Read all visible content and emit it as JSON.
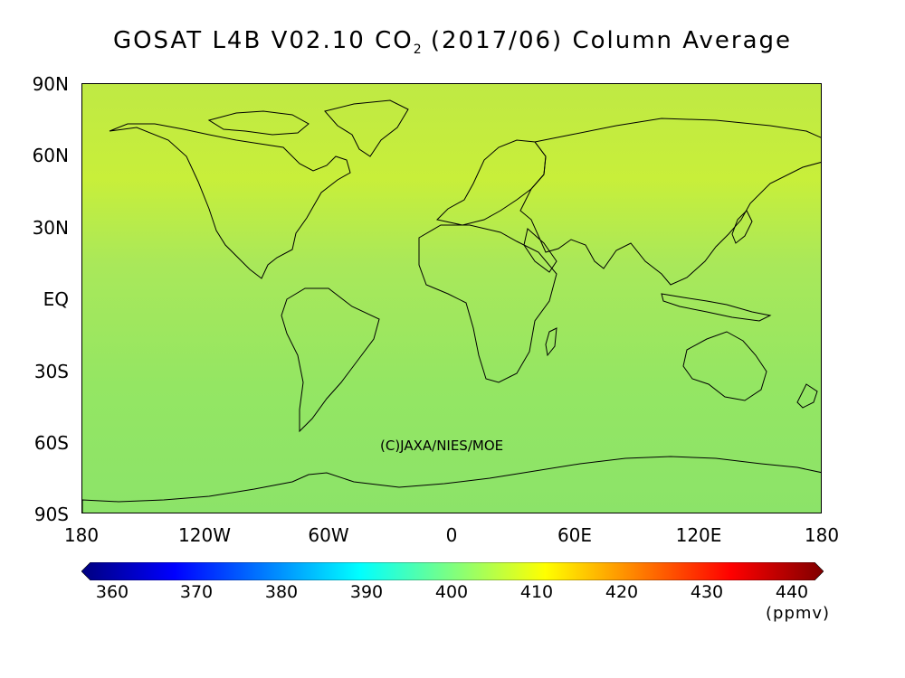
{
  "title": {
    "prefix": "GOSAT L4B V02.10 CO",
    "subscript": "2",
    "suffix": " (2017/06) Column Average"
  },
  "map": {
    "projection": "equirectangular",
    "lat_ticks": [
      "90N",
      "60N",
      "30N",
      "EQ",
      "30S",
      "60S",
      "90S"
    ],
    "lon_ticks": [
      "180",
      "120W",
      "60W",
      "0",
      "60E",
      "120E",
      "180"
    ],
    "credit": "(C)JAXA/NIES/MOE",
    "fill_colors": {
      "band_north": "#bfe944",
      "band_subtropic_north": "#c8ef3a",
      "band_tropics": "#a9e85a",
      "band_south": "#94e663",
      "band_antarctic": "#8ce369",
      "land_outline": "#000000"
    }
  },
  "colorbar": {
    "min": 360,
    "max": 440,
    "tick_labels": [
      "360",
      "370",
      "380",
      "390",
      "400",
      "410",
      "420",
      "430",
      "440"
    ],
    "unit": "(ppmv)",
    "colors": [
      "#00007f",
      "#0000ff",
      "#007fff",
      "#00ffff",
      "#7fff7f",
      "#ffff00",
      "#ff7f00",
      "#ff0000",
      "#7f0000"
    ]
  }
}
